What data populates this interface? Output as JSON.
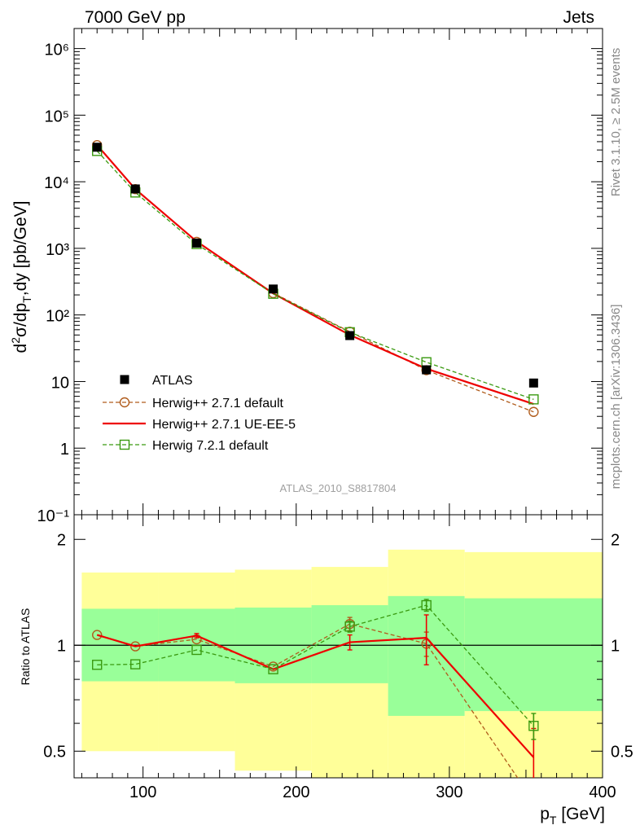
{
  "header": {
    "left": "7000 GeV pp",
    "right": "Jets"
  },
  "side_texts": {
    "rivet": "Rivet 3.1.10, ≥ 2.5M events",
    "mcplots": "mcplots.cern.ch [arXiv:1306.3436]"
  },
  "analysis_label": "ATLAS_2010_S8817804",
  "colors": {
    "data": "#000000",
    "herwigpp_default": "#b05c1c",
    "herwigpp_ueee5": "#ee0000",
    "herwig7_default": "#3a9a10",
    "band_inner": "#99ff99",
    "band_outer": "#ffff99"
  },
  "chart_data": [
    {
      "type": "line",
      "panel": "main",
      "ylabel": "d²σ/dp_T,dy [pb/GeV]",
      "yscale": "log",
      "ylim": [
        0.1,
        2000000
      ],
      "xlim": [
        55,
        400
      ],
      "y_tick_labels": [
        "10⁻¹",
        "1",
        "10",
        "10²",
        "10³",
        "10⁴",
        "10⁵",
        "10⁶"
      ],
      "legend_position": "lower-left",
      "series": [
        {
          "name": "ATLAS",
          "style": "data",
          "x": [
            70,
            95,
            135,
            185,
            235,
            285,
            355
          ],
          "y": [
            33000,
            7800,
            1200,
            245,
            49,
            15,
            9.5
          ]
        },
        {
          "name": "Herwig++ 2.7.1 default",
          "style": "dashed-circle",
          "x": [
            70,
            95,
            135,
            185,
            235,
            285,
            355
          ],
          "y": [
            35500,
            7750,
            1250,
            213,
            56,
            14.8,
            3.5
          ]
        },
        {
          "name": "Herwig++ 2.7.1 UE-EE-5",
          "style": "solid",
          "x": [
            70,
            95,
            135,
            185,
            235,
            285,
            355
          ],
          "y": [
            35500,
            7750,
            1270,
            210,
            50,
            15.6,
            4.6
          ]
        },
        {
          "name": "Herwig 7.2.1 default",
          "style": "dashed-square",
          "x": [
            70,
            95,
            135,
            185,
            235,
            285,
            355
          ],
          "y": [
            29000,
            6900,
            1160,
            208,
            55,
            19.5,
            5.4
          ]
        }
      ]
    },
    {
      "type": "line",
      "panel": "ratio",
      "xlabel": "p_T [GeV]",
      "ylabel": "Ratio to ATLAS",
      "yscale": "log",
      "ylim": [
        0.42,
        2.35
      ],
      "xlim": [
        55,
        400
      ],
      "x_ticks": [
        100,
        200,
        300,
        400
      ],
      "y_ticks": [
        0.5,
        1,
        2
      ],
      "bands": [
        {
          "x0": 60,
          "x1": 110,
          "inner": [
            0.79,
            1.27
          ],
          "outer": [
            0.5,
            1.61
          ]
        },
        {
          "x0": 110,
          "x1": 160,
          "inner": [
            0.79,
            1.27
          ],
          "outer": [
            0.5,
            1.61
          ]
        },
        {
          "x0": 160,
          "x1": 210,
          "inner": [
            0.78,
            1.28
          ],
          "outer": [
            0.44,
            1.64
          ]
        },
        {
          "x0": 210,
          "x1": 260,
          "inner": [
            0.78,
            1.3
          ],
          "outer": [
            0.42,
            1.67
          ]
        },
        {
          "x0": 260,
          "x1": 310,
          "inner": [
            0.63,
            1.38
          ],
          "outer": [
            0.42,
            1.87
          ]
        },
        {
          "x0": 310,
          "x1": 400,
          "inner": [
            0.65,
            1.36
          ],
          "outer": [
            0.42,
            1.84
          ]
        }
      ],
      "series": [
        {
          "name": "Herwig++ 2.7.1 default",
          "style": "dashed-circle",
          "x": [
            70,
            95,
            135,
            185,
            235,
            285,
            355
          ],
          "y": [
            1.07,
            0.993,
            1.04,
            0.87,
            1.15,
            1.01,
            0.36
          ],
          "err": [
            0,
            0,
            0,
            0,
            0.05,
            0.08,
            0
          ]
        },
        {
          "name": "Herwig++ 2.7.1 UE-EE-5",
          "style": "solid",
          "x": [
            70,
            95,
            135,
            185,
            235,
            285,
            355
          ],
          "y": [
            1.07,
            0.993,
            1.065,
            0.855,
            1.02,
            1.05,
            0.48
          ],
          "err": [
            0,
            0,
            0.015,
            0,
            0.05,
            0.17,
            0.1
          ]
        },
        {
          "name": "Herwig 7.2.1 default",
          "style": "dashed-square",
          "x": [
            70,
            95,
            135,
            185,
            235,
            285,
            355
          ],
          "y": [
            0.88,
            0.883,
            0.97,
            0.855,
            1.13,
            1.3,
            0.59
          ],
          "err": [
            0,
            0,
            0,
            0,
            0.04,
            0.05,
            0.05
          ]
        }
      ]
    }
  ]
}
